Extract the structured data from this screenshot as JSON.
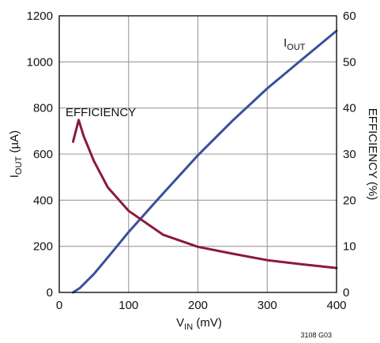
{
  "chart_data": {
    "type": "line",
    "x": {
      "label_main": "V",
      "label_sub": "IN",
      "label_unit": " (mV)",
      "range": [
        0,
        400
      ],
      "ticks": [
        0,
        100,
        200,
        300,
        400
      ],
      "tick_labels": [
        "0",
        "100",
        "200",
        "300",
        "400"
      ]
    },
    "y_left": {
      "label_main": "I",
      "label_sub": "OUT",
      "label_unit": " (µA)",
      "range": [
        0,
        1200
      ],
      "ticks": [
        0,
        200,
        400,
        600,
        800,
        1000,
        1200
      ],
      "tick_labels": [
        "0",
        "200",
        "400",
        "600",
        "800",
        "1000",
        "1200"
      ]
    },
    "y_right": {
      "label": "EFFICIENCY (%)",
      "range": [
        0,
        60
      ],
      "ticks": [
        0,
        10,
        20,
        30,
        40,
        50,
        60
      ],
      "tick_labels": [
        "0",
        "10",
        "20",
        "30",
        "40",
        "50",
        "60"
      ]
    },
    "grid": true,
    "series": [
      {
        "name": "IOUT",
        "label_main": "I",
        "label_sub": "OUT",
        "axis": "left",
        "color": "#3a4f9b",
        "points": [
          [
            20,
            0
          ],
          [
            30,
            20
          ],
          [
            50,
            80
          ],
          [
            75,
            170
          ],
          [
            100,
            262
          ],
          [
            150,
            430
          ],
          [
            200,
            595
          ],
          [
            250,
            745
          ],
          [
            300,
            885
          ],
          [
            350,
            1010
          ],
          [
            400,
            1135
          ]
        ]
      },
      {
        "name": "EFFICIENCY",
        "label": "EFFICIENCY",
        "axis": "right",
        "color": "#8b1a3c",
        "points": [
          [
            20,
            32.7
          ],
          [
            28,
            37.4
          ],
          [
            35,
            34
          ],
          [
            50,
            28.5
          ],
          [
            70,
            22.8
          ],
          [
            100,
            17.7
          ],
          [
            150,
            12.5
          ],
          [
            200,
            9.9
          ],
          [
            250,
            8.4
          ],
          [
            300,
            7.0
          ],
          [
            350,
            6.1
          ],
          [
            400,
            5.3
          ]
        ]
      }
    ],
    "figure_id": "3108 G03"
  }
}
